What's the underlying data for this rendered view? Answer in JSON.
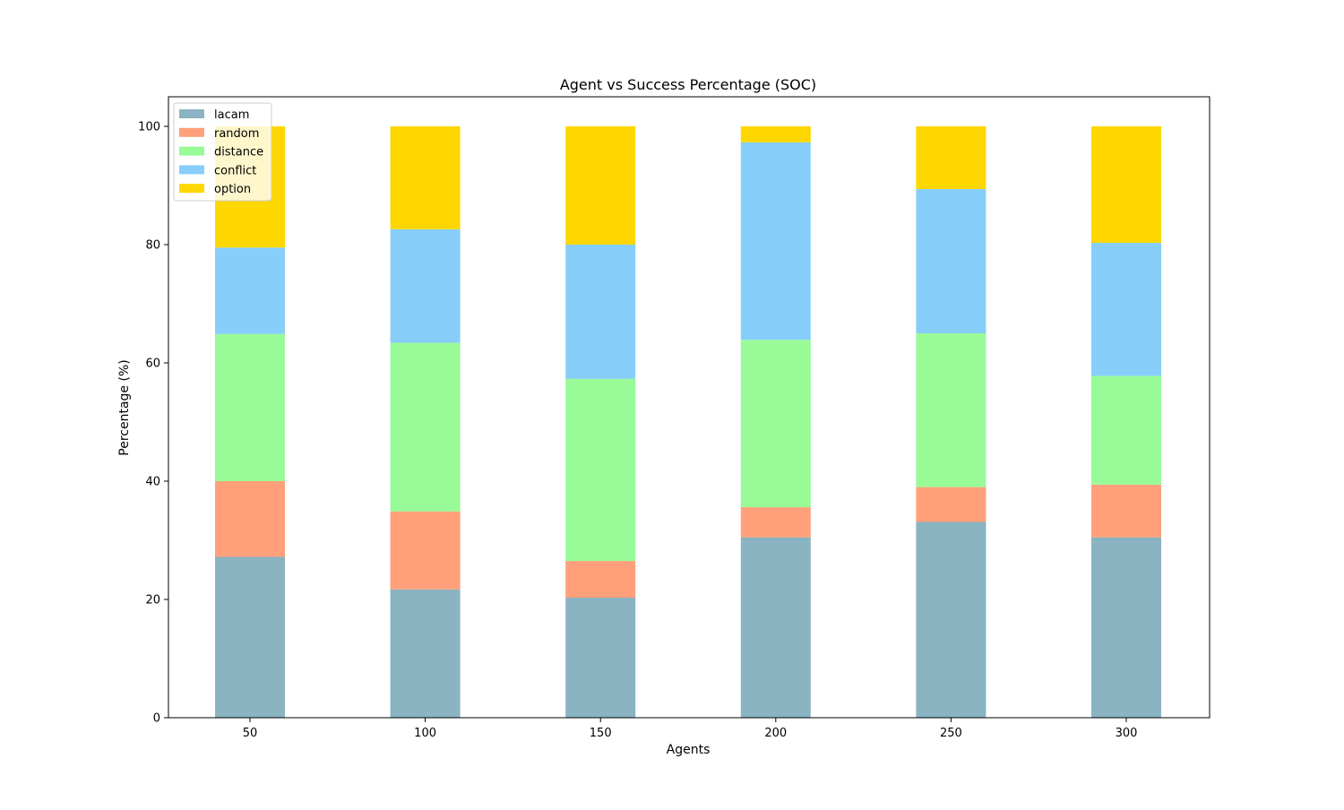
{
  "chart_data": {
    "type": "bar",
    "stacked": true,
    "title": "Agent vs Success Percentage (SOC)",
    "xlabel": "Agents",
    "ylabel": "Percentage (%)",
    "categories": [
      "50",
      "100",
      "150",
      "200",
      "250",
      "300"
    ],
    "ylim": [
      0,
      105
    ],
    "yticks": [
      "0",
      "20",
      "40",
      "60",
      "80",
      "100"
    ],
    "grid": false,
    "legend_position": "top-left",
    "series": [
      {
        "name": "lacam",
        "color": "#8AB4C1",
        "values": [
          27.2,
          21.7,
          20.3,
          30.5,
          33.1,
          30.5
        ]
      },
      {
        "name": "random",
        "color": "#FFA07A",
        "values": [
          12.8,
          13.2,
          6.2,
          5.1,
          5.9,
          8.9
        ]
      },
      {
        "name": "distance",
        "color": "#98FB98",
        "values": [
          24.9,
          28.5,
          30.8,
          28.3,
          26.0,
          18.4
        ]
      },
      {
        "name": "conflict",
        "color": "#87CEFA",
        "values": [
          14.6,
          19.2,
          22.7,
          33.4,
          24.4,
          22.5
        ]
      },
      {
        "name": "option",
        "color": "#FFD700",
        "values": [
          20.5,
          17.4,
          20.0,
          2.7,
          10.6,
          19.7
        ]
      }
    ]
  }
}
